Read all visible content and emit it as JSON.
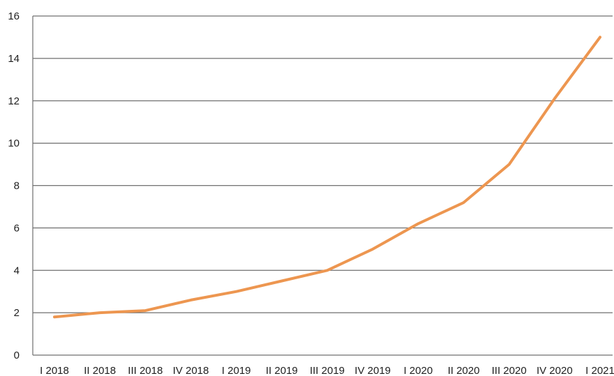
{
  "chart_data": {
    "type": "line",
    "title": "",
    "xlabel": "",
    "ylabel": "",
    "categories": [
      "I 2018",
      "II 2018",
      "III 2018",
      "IV 2018",
      "I 2019",
      "II 2019",
      "III 2019",
      "IV 2019",
      "I 2020",
      "II 2020",
      "III 2020",
      "IV 2020",
      "I 2021"
    ],
    "series": [
      {
        "values": [
          1.8,
          2.0,
          2.1,
          2.6,
          3.0,
          3.5,
          4.0,
          5.0,
          6.2,
          7.2,
          9.0,
          12.1,
          15.0
        ],
        "color": "#ED9650"
      }
    ],
    "ylim": [
      0,
      16
    ],
    "y_ticks": [
      0,
      2,
      4,
      6,
      8,
      10,
      12,
      14,
      16
    ],
    "grid": "horizontal",
    "legend": "none"
  }
}
